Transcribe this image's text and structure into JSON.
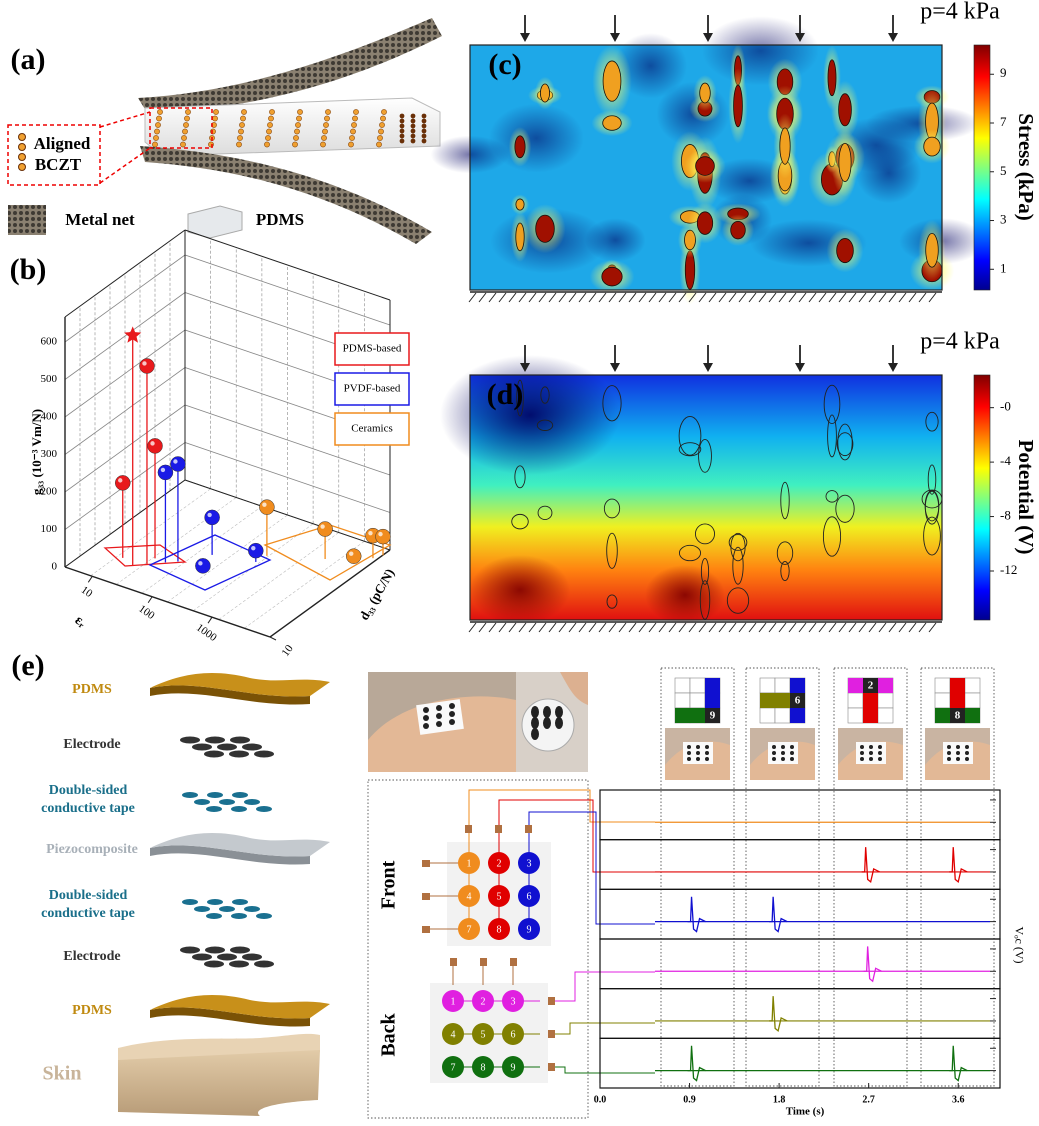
{
  "panel_a": {
    "label": "(a)",
    "callout": [
      "Aligned",
      "BCZT"
    ],
    "legend": [
      "Metal net",
      "PDMS"
    ]
  },
  "panel_e": {
    "label": "(e)",
    "layers": [
      "PDMS",
      "Electrode",
      [
        "Double-sided",
        "conductive tape"
      ],
      "Piezocomposite",
      [
        "Double-sided",
        "conductive tape"
      ],
      "Electrode",
      "PDMS",
      "Skin"
    ],
    "front_label": "Front",
    "back_label": "Back",
    "front_nodes": [
      "1",
      "2",
      "3",
      "4",
      "5",
      "6",
      "7",
      "8",
      "9"
    ],
    "back_nodes": [
      "1",
      "2",
      "3",
      "4",
      "5",
      "6",
      "7",
      "8",
      "9"
    ],
    "touch_icons": [
      "9",
      "6",
      "2",
      "8"
    ]
  },
  "chart_data": [
    {
      "type": "scatter3d",
      "label": "(b)",
      "z_label": "g₃₃ (10⁻³ Vm/N)",
      "x_label": "εᵣ",
      "y_label": "d₃₃ (pC/N)",
      "xlim": [
        3.5,
        9300
      ],
      "ylim": [
        10,
        2000
      ],
      "zlim": [
        0,
        600
      ],
      "xticks": [
        10,
        100,
        1000
      ],
      "yticks": [
        10
      ],
      "zticks": [
        0,
        100,
        200,
        300,
        400,
        500,
        600
      ],
      "series": [
        {
          "color": "#e8191c",
          "marker": "star",
          "x": [
            19.3
          ],
          "y": [
            28
          ],
          "values": [
            613
          ]
        },
        {
          "name": "PDMS-based",
          "color": "#e8191c",
          "x": [
            27.5,
            27,
            11.4
          ],
          "y": [
            35,
            51,
            33
          ],
          "values": [
            530,
            300,
            200
          ]
        },
        {
          "name": "PVDF-based",
          "color": "#1a1ae6",
          "x": [
            55,
            41,
            106,
            428,
            162
          ],
          "y": [
            62,
            50,
            132,
            183,
            54
          ],
          "values": [
            260,
            240,
            100,
            30,
            20
          ]
        },
        {
          "name": "Ceramics",
          "color": "#f08c1e",
          "x": [
            460,
            2360,
            8000,
            9400,
            5900
          ],
          "y": [
            275,
            550,
            1120,
            1450,
            680
          ],
          "values": [
            130,
            80,
            60,
            50,
            20
          ]
        }
      ]
    },
    {
      "type": "heatmap",
      "label": "(c)",
      "annotation": "p=4 kPa",
      "colorbar_label": "Stress (kPa)",
      "clim": [
        0.15,
        10.2
      ],
      "cticks": [
        1,
        3,
        5,
        7,
        9
      ]
    },
    {
      "type": "heatmap",
      "label": "(d)",
      "annotation": "p=4 kPa",
      "colorbar_label": "Potential (V)",
      "clim": [
        -15.6,
        2.4
      ],
      "cticks": [
        {
          "value": 0,
          "label": "-0"
        },
        -4,
        -8,
        -12
      ]
    },
    {
      "type": "signals",
      "xlabel": "Time (s)",
      "ylabel": "Vₒc (V)",
      "xlim": [
        0,
        4.02
      ],
      "xticks": [
        {
          "value": 0,
          "label": "0.0"
        },
        0.9,
        1.8,
        2.7,
        3.6
      ],
      "series": [
        {
          "color": "#f08c1e",
          "events": []
        },
        {
          "color": "#e00000",
          "events": [
            2.67,
            3.55
          ]
        },
        {
          "color": "#1010d0",
          "events": [
            0.92,
            1.74
          ]
        },
        {
          "color": "#e020e0",
          "events": [
            2.69
          ]
        },
        {
          "color": "#808000",
          "events": [
            1.74
          ]
        },
        {
          "color": "#107010",
          "events": [
            0.92,
            3.55
          ]
        }
      ]
    }
  ]
}
